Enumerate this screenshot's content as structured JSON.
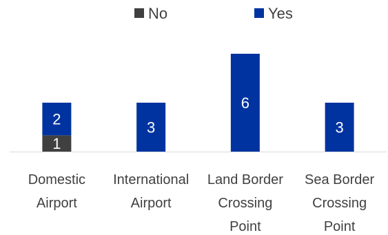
{
  "chart_data": {
    "type": "bar",
    "stacked": true,
    "categories": [
      [
        "Domestic",
        "Airport"
      ],
      [
        "International",
        "Airport"
      ],
      [
        "Land Border",
        "Crossing",
        "Point"
      ],
      [
        "Sea Border",
        "Crossing",
        "Point"
      ]
    ],
    "series": [
      {
        "name": "No",
        "values": [
          1,
          0,
          0,
          0
        ],
        "color": "#404040"
      },
      {
        "name": "Yes",
        "values": [
          2,
          3,
          6,
          3
        ],
        "color": "#0033a0"
      }
    ],
    "data_labels": [
      {
        "series": 0,
        "category": 0,
        "text": "1"
      },
      {
        "series": 1,
        "category": 0,
        "text": "2"
      },
      {
        "series": 1,
        "category": 1,
        "text": "3"
      },
      {
        "series": 1,
        "category": 2,
        "text": "6"
      },
      {
        "series": 1,
        "category": 3,
        "text": "3"
      }
    ],
    "ylim": [
      0,
      6
    ],
    "grid": false,
    "legend_position": "top",
    "axis_color": "#d9d9d9"
  }
}
